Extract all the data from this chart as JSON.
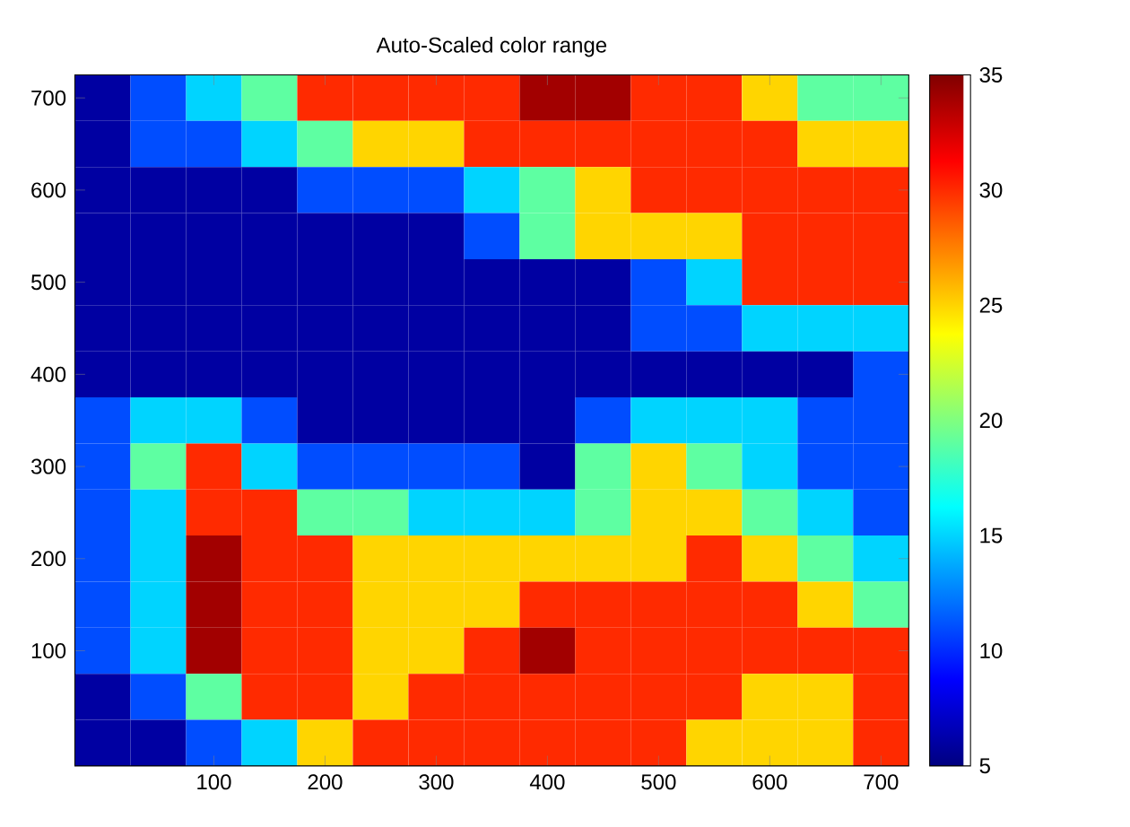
{
  "chart_data": {
    "type": "heatmap",
    "title": "Auto-Scaled color range",
    "categories": [
      null,
      null,
      "100",
      null,
      "200",
      null,
      "300",
      null,
      "400",
      null,
      "500",
      null,
      "600",
      null,
      "700"
    ],
    "y_categories": [
      "700",
      null,
      "600",
      null,
      "500",
      null,
      "400",
      null,
      "300",
      null,
      "200",
      null,
      "100",
      null,
      null
    ],
    "clim": [
      5,
      35
    ],
    "cticks": [
      5,
      10,
      15,
      20,
      25,
      30,
      35
    ],
    "cells": [
      [
        6,
        11,
        15,
        19,
        30,
        30,
        30,
        30,
        34,
        34,
        30,
        30,
        25,
        19,
        19
      ],
      [
        6,
        11,
        11,
        15,
        19,
        25,
        25,
        30,
        30,
        30,
        30,
        30,
        30,
        25,
        25
      ],
      [
        6,
        6,
        6,
        6,
        11,
        11,
        11,
        15,
        19,
        25,
        30,
        30,
        30,
        30,
        30
      ],
      [
        6,
        6,
        6,
        6,
        6,
        6,
        6,
        11,
        19,
        25,
        25,
        25,
        30,
        30,
        30
      ],
      [
        6,
        6,
        6,
        6,
        6,
        6,
        6,
        6,
        6,
        6,
        11,
        15,
        30,
        30,
        30
      ],
      [
        6,
        6,
        6,
        6,
        6,
        6,
        6,
        6,
        6,
        6,
        11,
        11,
        15,
        15,
        15
      ],
      [
        6,
        6,
        6,
        6,
        6,
        6,
        6,
        6,
        6,
        6,
        6,
        6,
        6,
        6,
        11
      ],
      [
        11,
        15,
        15,
        11,
        6,
        6,
        6,
        6,
        6,
        11,
        15,
        15,
        15,
        11,
        11
      ],
      [
        11,
        19,
        30,
        15,
        11,
        11,
        11,
        11,
        6,
        19,
        25,
        19,
        15,
        11,
        11
      ],
      [
        11,
        15,
        30,
        30,
        19,
        19,
        15,
        15,
        15,
        19,
        25,
        25,
        19,
        15,
        11
      ],
      [
        11,
        15,
        34,
        30,
        30,
        25,
        25,
        25,
        25,
        25,
        25,
        30,
        25,
        19,
        15
      ],
      [
        11,
        15,
        34,
        30,
        30,
        25,
        25,
        25,
        30,
        30,
        30,
        30,
        30,
        25,
        19
      ],
      [
        11,
        15,
        34,
        30,
        30,
        25,
        25,
        30,
        34,
        30,
        30,
        30,
        30,
        30,
        30
      ],
      [
        6,
        11,
        19,
        30,
        30,
        25,
        30,
        30,
        30,
        30,
        30,
        30,
        25,
        25,
        30
      ],
      [
        6,
        6,
        11,
        15,
        25,
        30,
        30,
        30,
        30,
        30,
        30,
        25,
        25,
        25,
        30
      ]
    ]
  }
}
